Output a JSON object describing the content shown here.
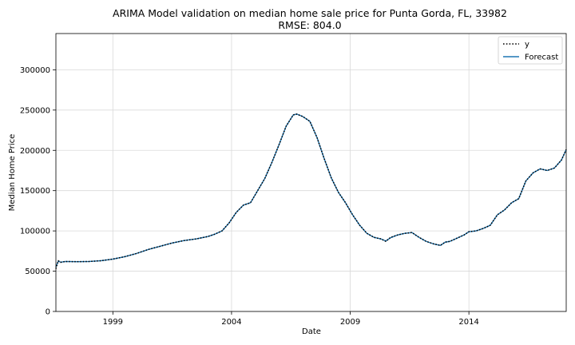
{
  "chart_data": {
    "type": "line",
    "title": "ARIMA Model validation on median home sale price for Punta Gorda, FL, 33982",
    "subtitle": "RMSE: 804.0",
    "xlabel": "Date",
    "ylabel": "Median Home Price",
    "xlim": [
      1996.6,
      2018.1
    ],
    "ylim": [
      0,
      345000
    ],
    "xticks": [
      1999,
      2004,
      2009,
      2014
    ],
    "xtick_labels": [
      "1999",
      "2004",
      "2009",
      "2014"
    ],
    "yticks": [
      0,
      50000,
      100000,
      150000,
      200000,
      250000,
      300000
    ],
    "yticks_labels": [
      "0",
      "50000",
      "100000",
      "150000",
      "200000",
      "250000",
      "300000"
    ],
    "grid": true,
    "legend_position": "top-right",
    "series": [
      {
        "name": "y",
        "style": "dotted",
        "color": "#000000",
        "x": [
          1996.6,
          1996.7,
          1996.8,
          1997.0,
          1997.5,
          1998.0,
          1998.5,
          1999.0,
          1999.5,
          2000.0,
          2000.5,
          2001.0,
          2001.5,
          2002.0,
          2002.5,
          2003.0,
          2003.3,
          2003.6,
          2003.9,
          2004.2,
          2004.5,
          2004.8,
          2005.1,
          2005.4,
          2005.7,
          2006.0,
          2006.3,
          2006.6,
          2006.75,
          2007.0,
          2007.3,
          2007.6,
          2007.9,
          2008.2,
          2008.5,
          2008.8,
          2009.1,
          2009.4,
          2009.7,
          2010.0,
          2010.3,
          2010.5,
          2010.7,
          2011.0,
          2011.3,
          2011.6,
          2011.9,
          2012.2,
          2012.5,
          2012.8,
          2013.0,
          2013.2,
          2013.5,
          2013.8,
          2014.0,
          2014.3,
          2014.6,
          2014.9,
          2015.2,
          2015.5,
          2015.8,
          2016.1,
          2016.4,
          2016.7,
          2017.0,
          2017.3,
          2017.6,
          2017.9,
          2018.1
        ],
        "y": [
          53000,
          63000,
          61000,
          62000,
          61800,
          62000,
          63000,
          65000,
          68000,
          72000,
          77000,
          81000,
          85000,
          88000,
          90000,
          93000,
          96000,
          100000,
          110000,
          123000,
          132000,
          135000,
          150000,
          165000,
          185000,
          207000,
          230000,
          244000,
          245000,
          242000,
          236000,
          216000,
          190000,
          166000,
          148000,
          135000,
          120000,
          107000,
          97000,
          92000,
          90000,
          87000,
          92000,
          95000,
          97000,
          98000,
          92000,
          87000,
          84000,
          82000,
          86000,
          87000,
          91000,
          95000,
          99000,
          100000,
          103000,
          107000,
          120000,
          126000,
          135000,
          140000,
          162000,
          172000,
          177000,
          175000,
          178000,
          188000,
          201000
        ]
      },
      {
        "name": "Forecast",
        "style": "solid",
        "color": "#1f77b4",
        "x": [
          1996.6,
          1996.7,
          1996.8,
          1997.0,
          1997.5,
          1998.0,
          1998.5,
          1999.0,
          1999.5,
          2000.0,
          2000.5,
          2001.0,
          2001.5,
          2002.0,
          2002.5,
          2003.0,
          2003.3,
          2003.6,
          2003.9,
          2004.2,
          2004.5,
          2004.8,
          2005.1,
          2005.4,
          2005.7,
          2006.0,
          2006.3,
          2006.6,
          2006.75,
          2007.0,
          2007.3,
          2007.6,
          2007.9,
          2008.2,
          2008.5,
          2008.8,
          2009.1,
          2009.4,
          2009.7,
          2010.0,
          2010.3,
          2010.5,
          2010.7,
          2011.0,
          2011.3,
          2011.6,
          2011.9,
          2012.2,
          2012.5,
          2012.8,
          2013.0,
          2013.2,
          2013.5,
          2013.8,
          2014.0,
          2014.3,
          2014.6,
          2014.9,
          2015.2,
          2015.5,
          2015.8,
          2016.1,
          2016.4,
          2016.7,
          2017.0,
          2017.3,
          2017.6,
          2017.9,
          2018.1
        ],
        "y": [
          55000,
          62500,
          61200,
          62000,
          61800,
          62000,
          63000,
          65000,
          68000,
          72000,
          77000,
          81000,
          85000,
          88000,
          90000,
          93000,
          96000,
          100000,
          110000,
          123000,
          132000,
          135000,
          150000,
          165000,
          185000,
          207000,
          230000,
          244000,
          245000,
          242000,
          236000,
          216000,
          190000,
          166000,
          148000,
          135000,
          120000,
          107000,
          97000,
          92000,
          90000,
          87500,
          91500,
          95000,
          97000,
          98000,
          92000,
          87000,
          84000,
          82000,
          86000,
          87000,
          91000,
          95000,
          99000,
          100000,
          103000,
          107000,
          120000,
          126000,
          135000,
          140000,
          162000,
          172000,
          177000,
          175000,
          178000,
          188000,
          201000
        ]
      }
    ]
  }
}
